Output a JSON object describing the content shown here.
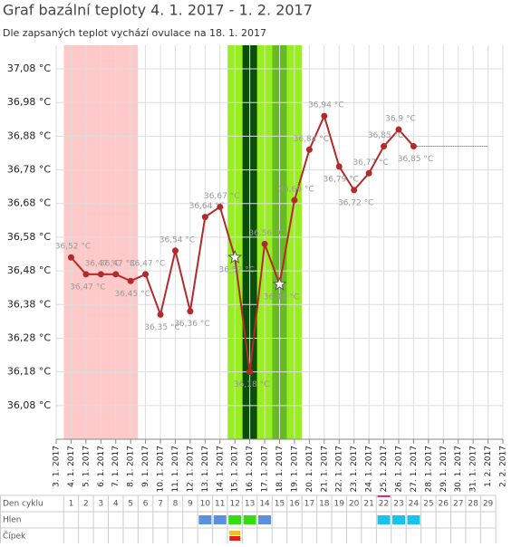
{
  "chart_data": {
    "type": "line",
    "title": "Graf bazální teploty 4. 1. 2017 - 1. 2. 2017",
    "subtitle": "Dle zapsaných teplot vychází ovulace na 18. 1. 2017",
    "categories": [
      "3. 1. 2017",
      "4. 1. 2017",
      "5. 1. 2017",
      "6. 1. 2017",
      "7. 1. 2017",
      "8. 1. 2017",
      "9. 1. 2017",
      "10. 1. 2017",
      "11. 1. 2017",
      "12. 1. 2017",
      "13. 1. 2017",
      "14. 1. 2017",
      "15. 1. 2017",
      "16. 1. 2017",
      "17. 1. 2017",
      "18. 1. 2017",
      "19. 1. 2017",
      "20. 1. 2017",
      "21. 1. 2017",
      "22. 1. 2017",
      "23. 1. 2017",
      "24. 1. 2017",
      "25. 1. 2017",
      "26. 1. 2017",
      "27. 1. 2017",
      "28. 1. 2017",
      "29. 1. 2017",
      "30. 1. 2017",
      "31. 1. 2017",
      "1. 2. 2017",
      "2. 2. 2017"
    ],
    "values": [
      null,
      36.52,
      36.47,
      36.47,
      36.47,
      36.45,
      36.47,
      36.35,
      36.54,
      36.36,
      36.64,
      36.67,
      36.52,
      36.18,
      36.56,
      36.44,
      36.69,
      36.84,
      36.94,
      36.79,
      36.72,
      36.77,
      36.85,
      36.9,
      36.85,
      null,
      null,
      null,
      null,
      null,
      null
    ],
    "value_labels": [
      null,
      "36,52 °C",
      "36,47 °C",
      "36,47 °C",
      "36,47 °C",
      "36,45 °C",
      "36,47 °C",
      "36,35 °C",
      "36,54 °C",
      "36,36 °C",
      "36,64 °C",
      "36,67 °C",
      "36,52 °C",
      "36,18 °C",
      "36,56 °C",
      "36,44 °C",
      "36,69 °C",
      "36,84 °C",
      "36,94 °C",
      "36,79 °C",
      "36,72 °C",
      "36,77 °C",
      "36,85 °C",
      "36,9 °C",
      "36,85 °C",
      null,
      null,
      null,
      null,
      null,
      null
    ],
    "color": "#b22a2a",
    "ylim": [
      35.98,
      37.15
    ],
    "yticks": [
      {
        "value": 36.08,
        "label": "36,08 °C"
      },
      {
        "value": 36.18,
        "label": "36,18 °C"
      },
      {
        "value": 36.28,
        "label": "36,28 °C"
      },
      {
        "value": 36.38,
        "label": "36,38 °C"
      },
      {
        "value": 36.48,
        "label": "36,48 °C"
      },
      {
        "value": 36.58,
        "label": "36,58 °C"
      },
      {
        "value": 36.68,
        "label": "36,68 °C"
      },
      {
        "value": 36.78,
        "label": "36,78 °C"
      },
      {
        "value": 36.88,
        "label": "36,88 °C"
      },
      {
        "value": 36.98,
        "label": "36,98 °C"
      },
      {
        "value": 37.08,
        "label": "37,08 °C"
      }
    ],
    "grid": true
  },
  "cycle_table": {
    "row_labels": [
      "Den cyklu",
      "Hlen",
      "Čípek"
    ],
    "days": [
      1,
      2,
      3,
      4,
      5,
      6,
      7,
      8,
      9,
      10,
      11,
      12,
      13,
      14,
      15,
      16,
      17,
      18,
      19,
      20,
      21,
      22,
      23,
      24,
      25,
      26,
      27,
      28,
      29
    ]
  }
}
